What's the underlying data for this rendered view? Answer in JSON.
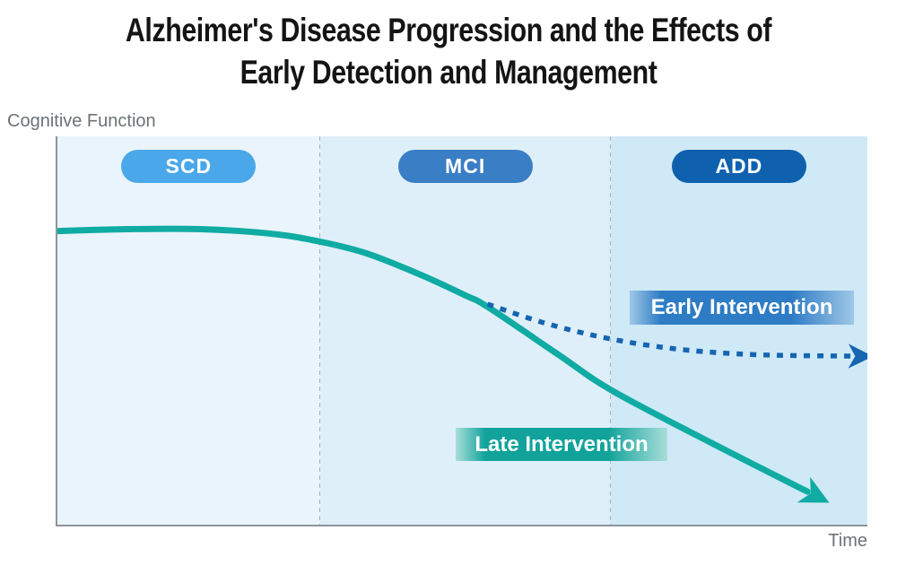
{
  "title": {
    "full": "Alzheimer's Disease Progression and the Effects of Early Detection and Management",
    "lines": [
      "Alzheimer's Disease Progression and the Effects of",
      "Early Detection and Management"
    ]
  },
  "axes": {
    "y_label": "Cognitive Function",
    "x_label": "Time",
    "axis_color": "#8d959c",
    "separator_color": "#a8b4bd"
  },
  "annotations": {
    "early": {
      "label": "Early Intervention",
      "color_core": "#2e7cc5",
      "color_edge": "#9fc7e8"
    },
    "late": {
      "label": "Late Intervention",
      "color_core": "#11a39b",
      "color_edge": "#a9ded9"
    }
  },
  "chart_data": {
    "type": "line",
    "title": "Alzheimer's Disease Progression and the Effects of Early Detection and Management",
    "xlabel": "Time",
    "ylabel": "Cognitive Function",
    "x_range_pct": [
      0,
      100
    ],
    "y_range_pct": [
      0,
      100
    ],
    "grid": false,
    "legend_position": "inline-labels",
    "stages": [
      {
        "label": "SCD",
        "x_start_pct": 0,
        "x_end_pct": 32.4,
        "pill_color": "#4aa7e9",
        "band_color": "#eaf4fc"
      },
      {
        "label": "MCI",
        "x_start_pct": 32.4,
        "x_end_pct": 68.3,
        "pill_color": "#3a7ec5",
        "band_color": "#dfeff9"
      },
      {
        "label": "ADD",
        "x_start_pct": 68.3,
        "x_end_pct": 100,
        "pill_color": "#0f61ae",
        "band_color": "#cfe9f6"
      }
    ],
    "series": [
      {
        "name": "Late Intervention",
        "style": "solid",
        "color": "#10aba3",
        "stroke_width": 7,
        "x": [
          0,
          8.8,
          17.7,
          26.5,
          32.4,
          38.1,
          44.8,
          50.3,
          53.1,
          61.9,
          68.5,
          80.7,
          92.6
        ],
        "y": [
          75.6,
          76.1,
          76.1,
          74.9,
          72.9,
          69.9,
          64.4,
          59.1,
          56.1,
          43.7,
          34.5,
          21.1,
          8.5
        ]
      },
      {
        "name": "Early Intervention",
        "style": "dotted",
        "color": "#1565b1",
        "stroke_width": 5.5,
        "x": [
          53.1,
          59.7,
          66.3,
          72.9,
          79.6,
          87.3,
          98.1
        ],
        "y": [
          56.8,
          52.2,
          48.7,
          46.2,
          44.6,
          43.7,
          43.4
        ]
      }
    ]
  }
}
